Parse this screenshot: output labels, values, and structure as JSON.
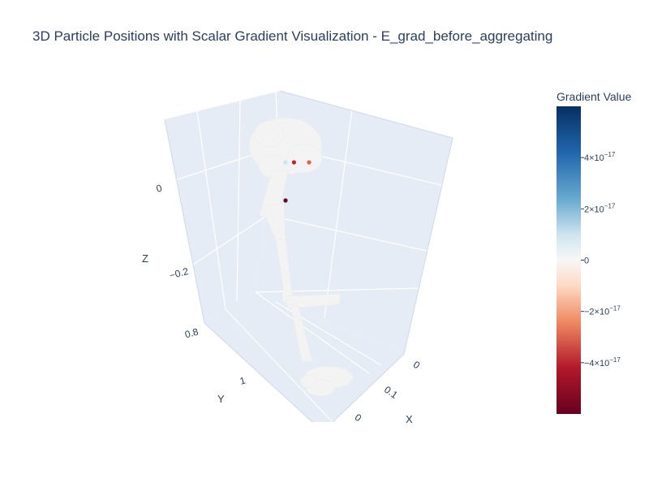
{
  "chart_data": {
    "type": "scatter",
    "title": "3D Particle Positions with Scalar Gradient Visualization - E_grad_before_aggregating",
    "axes": {
      "x": {
        "label": "X",
        "ticks": [
          "0",
          "0.1",
          "0"
        ]
      },
      "y": {
        "label": "Y",
        "ticks": [
          "0.8",
          "1"
        ]
      },
      "z": {
        "label": "Z",
        "ticks": [
          "0",
          "−0.2"
        ]
      }
    },
    "colorbar": {
      "title": "Gradient Value",
      "colorscale": "RdBu",
      "range": [
        -6e-17,
        6e-17
      ],
      "ticks": [
        {
          "value": 4e-17,
          "mantissa": "4×10",
          "exp": "−17"
        },
        {
          "value": 2e-17,
          "mantissa": "2×10",
          "exp": "−17"
        },
        {
          "value": 0,
          "mantissa": "0",
          "exp": ""
        },
        {
          "value": -2e-17,
          "mantissa": "−2×10",
          "exp": "−17"
        },
        {
          "value": -4e-17,
          "mantissa": "−4×10",
          "exp": "−17"
        }
      ]
    },
    "grid": true,
    "legend": "none",
    "highlighted_points": [
      {
        "x": 0.05,
        "y": 0.95,
        "z": -0.05,
        "value": -6e-17
      },
      {
        "x": 0.05,
        "y": 0.95,
        "z": -0.25,
        "value": 1e-17
      },
      {
        "x": 0.06,
        "y": 1.02,
        "z": -0.28,
        "value": -4e-17
      },
      {
        "x": 0.08,
        "y": 1.05,
        "z": -0.4,
        "value": -3e-17
      }
    ]
  }
}
